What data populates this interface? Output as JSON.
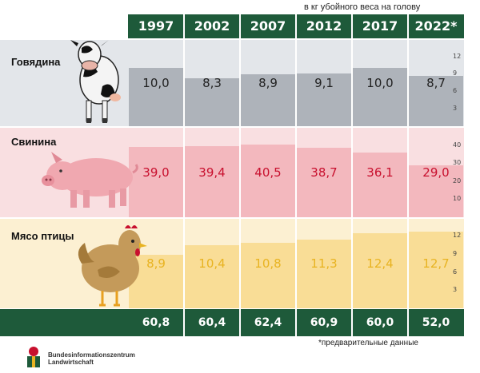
{
  "unit_note": "в кг убойного веса на голову",
  "footnote": "*предварительные данные",
  "logo": {
    "line1": "Bundesinformationszentrum",
    "line2": "Landwirtschaft"
  },
  "colors": {
    "header": "#1e5a3a",
    "beef_bg": "#e3e6ea",
    "beef_bar": "#aeb3ba",
    "beef_text": "#222222",
    "pork_bg": "#f9dfe1",
    "pork_bar": "#f3b8be",
    "pork_text": "#c8102e",
    "poultry_bg": "#fcf0d2",
    "poultry_bar": "#f9dd96",
    "poultry_text": "#e8b321"
  },
  "chart_data": {
    "type": "bar",
    "categories": [
      "1997",
      "2002",
      "2007",
      "2012",
      "2017",
      "2022*"
    ],
    "series": [
      {
        "name": "Говядина",
        "values": [
          10.0,
          8.3,
          8.9,
          9.1,
          10.0,
          8.7
        ],
        "labels": [
          "10,0",
          "8,3",
          "8,9",
          "9,1",
          "10,0",
          "8,7"
        ],
        "ticks": [
          "12",
          "9",
          "6",
          "3"
        ],
        "ylim": [
          0,
          14
        ]
      },
      {
        "name": "Свинина",
        "values": [
          39.0,
          39.4,
          40.5,
          38.7,
          36.1,
          29.0
        ],
        "labels": [
          "39,0",
          "39,4",
          "40,5",
          "38,7",
          "36,1",
          "29,0"
        ],
        "ticks": [
          "40",
          "30",
          "20",
          "10"
        ],
        "ylim": [
          0,
          47
        ]
      },
      {
        "name": "Мясо птицы",
        "values": [
          8.9,
          10.4,
          10.8,
          11.3,
          12.4,
          12.7
        ],
        "labels": [
          "8,9",
          "10,4",
          "10,8",
          "11,3",
          "12,4",
          "12,7"
        ],
        "ticks": [
          "12",
          "9",
          "6",
          "3"
        ],
        "ylim": [
          0,
          14
        ]
      }
    ],
    "totals": [
      "60,8",
      "60,4",
      "62,4",
      "60,9",
      "60,0",
      "52,0"
    ]
  }
}
